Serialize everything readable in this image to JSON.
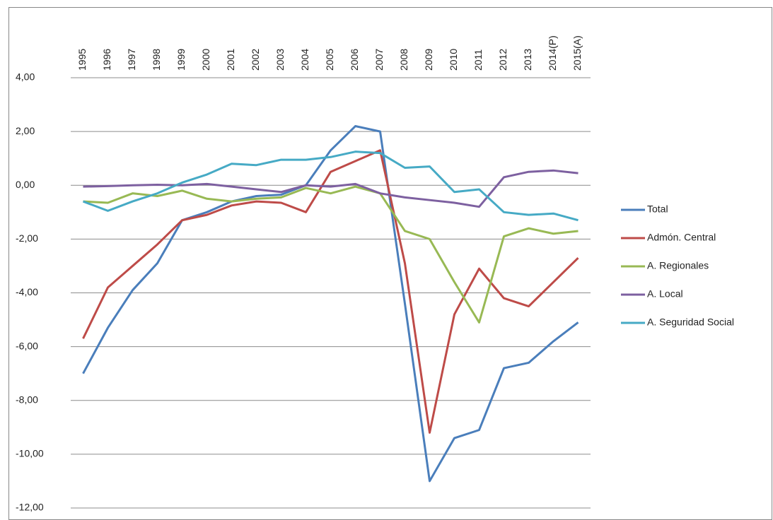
{
  "chart_data": {
    "type": "line",
    "categories": [
      "1995",
      "1996",
      "1997",
      "1998",
      "1999",
      "2000",
      "2001",
      "2002",
      "2003",
      "2004",
      "2005",
      "2006",
      "2007",
      "2008",
      "2009",
      "2010",
      "2011",
      "2012",
      "2013",
      "2014(P)",
      "2015(A)"
    ],
    "series": [
      {
        "name": "Total",
        "color": "#4a7ebb",
        "values": [
          -7.0,
          -5.3,
          -3.9,
          -2.9,
          -1.3,
          -1.0,
          -0.6,
          -0.4,
          -0.35,
          0.0,
          1.3,
          2.2,
          2.0,
          -4.4,
          -11.0,
          -9.4,
          -9.1,
          -6.8,
          -6.6,
          -5.8,
          -5.1
        ]
      },
      {
        "name": "Admón. Central",
        "color": "#be4b48",
        "values": [
          -5.7,
          -3.8,
          -3.0,
          -2.2,
          -1.3,
          -1.1,
          -0.75,
          -0.6,
          -0.65,
          -1.0,
          0.5,
          0.9,
          1.3,
          -2.9,
          -9.2,
          -4.8,
          -3.1,
          -4.2,
          -4.5,
          -3.6,
          -2.7
        ]
      },
      {
        "name": "A. Regionales",
        "color": "#98b954",
        "values": [
          -0.6,
          -0.65,
          -0.3,
          -0.4,
          -0.2,
          -0.5,
          -0.6,
          -0.5,
          -0.45,
          -0.1,
          -0.3,
          -0.05,
          -0.3,
          -1.7,
          -2.0,
          -3.6,
          -5.1,
          -1.9,
          -1.6,
          -1.8,
          -1.7
        ]
      },
      {
        "name": "A. Local",
        "color": "#7d60a0",
        "values": [
          -0.05,
          -0.03,
          0.0,
          0.02,
          0.0,
          0.05,
          -0.05,
          -0.15,
          -0.25,
          0.0,
          -0.05,
          0.05,
          -0.3,
          -0.45,
          -0.55,
          -0.65,
          -0.8,
          0.3,
          0.5,
          0.55,
          0.45
        ]
      },
      {
        "name": "A. Seguridad Social",
        "color": "#46aac5",
        "values": [
          -0.6,
          -0.95,
          -0.6,
          -0.3,
          0.1,
          0.4,
          0.8,
          0.75,
          0.95,
          0.95,
          1.05,
          1.25,
          1.2,
          0.65,
          0.7,
          -0.25,
          -0.15,
          -1.0,
          -1.1,
          -1.05,
          -1.3
        ]
      }
    ],
    "ylim": [
      -12,
      4
    ],
    "yticks": [
      {
        "value": -12,
        "label": "-12,00"
      },
      {
        "value": -10,
        "label": "-10,00"
      },
      {
        "value": -8,
        "label": "-8,00"
      },
      {
        "value": -6,
        "label": "-6,00"
      },
      {
        "value": -4,
        "label": "-4,00"
      },
      {
        "value": -2,
        "label": "-2,00"
      },
      {
        "value": 0,
        "label": "0,00"
      },
      {
        "value": 2,
        "label": "2,00"
      },
      {
        "value": 4,
        "label": "4,00"
      }
    ],
    "grid": true,
    "legend": "right"
  }
}
